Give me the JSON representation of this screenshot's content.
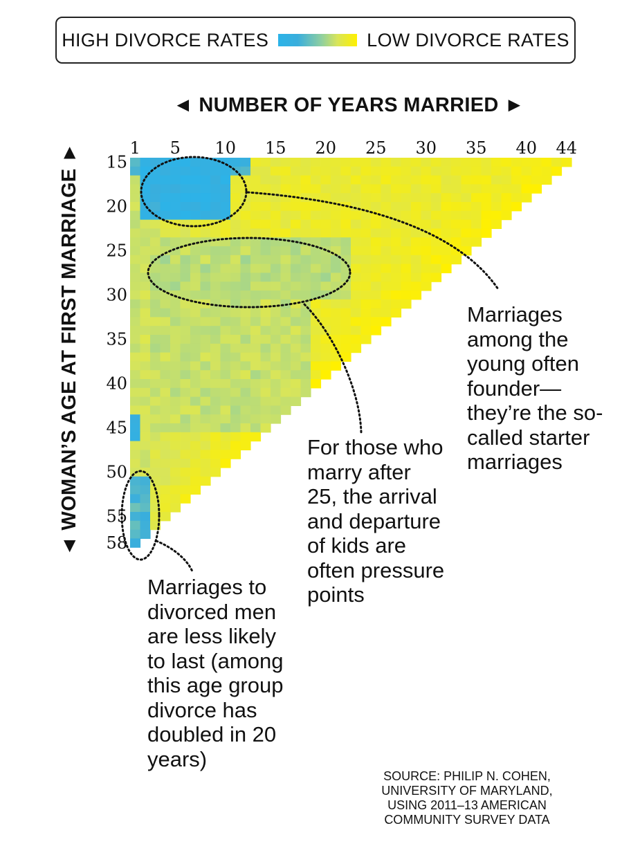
{
  "legend": {
    "high_label": "HIGH DIVORCE RATES",
    "low_label": "LOW DIVORCE RATES",
    "colors": [
      "#2cb3e8",
      "#3aaedc",
      "#8fcfa0",
      "#d8e55a",
      "#fff000"
    ]
  },
  "chart_data": {
    "type": "heatmap",
    "title": "",
    "xlabel": "◄ NUMBER OF YEARS MARRIED ►",
    "ylabel": "◄ WOMAN’S AGE AT FIRST MARRIAGE ►",
    "x_range": [
      1,
      44
    ],
    "y_range": [
      15,
      58
    ],
    "x_ticks": [
      1,
      5,
      10,
      15,
      20,
      25,
      30,
      35,
      40,
      44
    ],
    "y_ticks": [
      15,
      20,
      25,
      30,
      35,
      40,
      45,
      50,
      55,
      58
    ],
    "value_scale": "divorce rate: 1 = high (blue), 0 = low (yellow)",
    "regions": [
      {
        "ages": [
          15,
          21
        ],
        "years": [
          2,
          10
        ],
        "level": 1.0
      },
      {
        "ages": [
          15,
          16
        ],
        "years": [
          1,
          12
        ],
        "level": 0.85
      },
      {
        "ages": [
          44,
          46
        ],
        "years": [
          1,
          1
        ],
        "level": 0.9
      },
      {
        "ages": [
          51,
          58
        ],
        "years": [
          1,
          2
        ],
        "level": 0.8
      },
      {
        "ages": [
          24,
          30
        ],
        "years": [
          3,
          22
        ],
        "level": 0.4
      },
      {
        "ages": [
          30,
          45
        ],
        "years": [
          3,
          18
        ],
        "level": 0.35
      }
    ]
  },
  "annotations": {
    "starter": "Marriages among the young often founder—they’re the so-called starter marriages",
    "after25": "For those who marry after 25, the arrival and departure of kids are often pressure points",
    "divorced": "Marriages to divorced men are less likely to last (among this age group divorce has doubled in 20 years)"
  },
  "source": "SOURCE: PHILIP N. COHEN, UNIVERSITY OF MARYLAND, USING 2011–13 AMERICAN COMMUNITY SURVEY DATA"
}
